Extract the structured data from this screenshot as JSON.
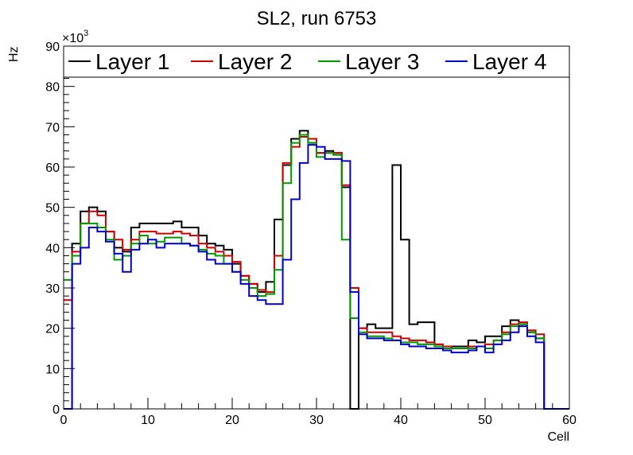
{
  "chart_data": {
    "type": "line",
    "style": "step-histogram",
    "title": "SL2, run 6753",
    "xlabel": "Cell",
    "ylabel": "Hz",
    "y_exponent_label": "×10",
    "y_exponent_power": "3",
    "xlim": [
      0,
      60
    ],
    "ylim": [
      0,
      90
    ],
    "x_ticks": [
      "0",
      "10",
      "20",
      "30",
      "40",
      "50",
      "60"
    ],
    "y_ticks": [
      "0",
      "10",
      "20",
      "30",
      "40",
      "50",
      "60",
      "70",
      "80",
      "90"
    ],
    "bin_width": 1,
    "bin_start": 0,
    "legend_position": "top",
    "series": [
      {
        "name": "Layer 1",
        "color": "#000000",
        "values": [
          0,
          41,
          49,
          50,
          49,
          44,
          40,
          39,
          45,
          46,
          46,
          46,
          46,
          46.5,
          45,
          45,
          43,
          41,
          40.5,
          39.5,
          36,
          33,
          31,
          29,
          31.5,
          47,
          60.5,
          67,
          69,
          66,
          63.5,
          64,
          63.5,
          55,
          0,
          20,
          21,
          20,
          20,
          60.5,
          42,
          21,
          21.5,
          21.5,
          16,
          15.5,
          15.5,
          15.5,
          17,
          16.5,
          18,
          18,
          20.5,
          22,
          21,
          19,
          17.5,
          0,
          0,
          0
        ]
      },
      {
        "name": "Layer 2",
        "color": "#cc0000",
        "values": [
          27,
          39,
          46,
          49,
          48,
          44,
          42,
          39.5,
          42,
          44,
          44,
          43.5,
          43.5,
          44,
          43.5,
          43,
          41,
          40,
          39,
          38,
          36.5,
          33,
          31,
          29.5,
          29,
          38,
          61,
          65,
          67.5,
          67,
          63.5,
          63.5,
          63.5,
          55.5,
          30,
          20,
          19,
          19,
          19,
          18,
          17.5,
          17,
          17,
          16.5,
          16,
          15.5,
          15,
          15,
          15.5,
          15.5,
          16,
          17,
          19,
          21,
          21.5,
          19.5,
          18.5,
          0,
          0,
          0
        ]
      },
      {
        "name": "Layer 3",
        "color": "#009900",
        "values": [
          32,
          38,
          46,
          46,
          45,
          42,
          37,
          38,
          41,
          43,
          41,
          41.5,
          42.5,
          42.5,
          41,
          40.5,
          39.5,
          38.5,
          38,
          36,
          34,
          32,
          30,
          28,
          28.5,
          34.5,
          56,
          66,
          68,
          66,
          62.5,
          63.5,
          63,
          42,
          22.5,
          19,
          18,
          18,
          17.5,
          17,
          16.5,
          16.5,
          16,
          16,
          15.5,
          15,
          15,
          15,
          15,
          15.5,
          15,
          17,
          18.5,
          20.5,
          21,
          19,
          17.5,
          0,
          0,
          0
        ]
      },
      {
        "name": "Layer 4",
        "color": "#0000cc",
        "values": [
          0,
          36,
          40,
          45,
          44,
          41.5,
          38.5,
          34,
          39.5,
          41,
          42,
          40,
          41,
          41,
          41,
          40.5,
          39,
          37,
          36,
          36,
          34,
          31,
          28,
          27,
          26,
          26,
          37,
          52,
          61,
          65.5,
          65,
          62,
          62,
          61.5,
          29,
          18.5,
          17.5,
          17.5,
          17,
          17,
          16,
          15.5,
          15.5,
          15,
          15,
          14.5,
          14,
          14,
          14.5,
          15.5,
          14,
          16,
          17,
          19,
          20.5,
          18,
          16.5,
          0,
          0,
          0
        ]
      }
    ]
  }
}
